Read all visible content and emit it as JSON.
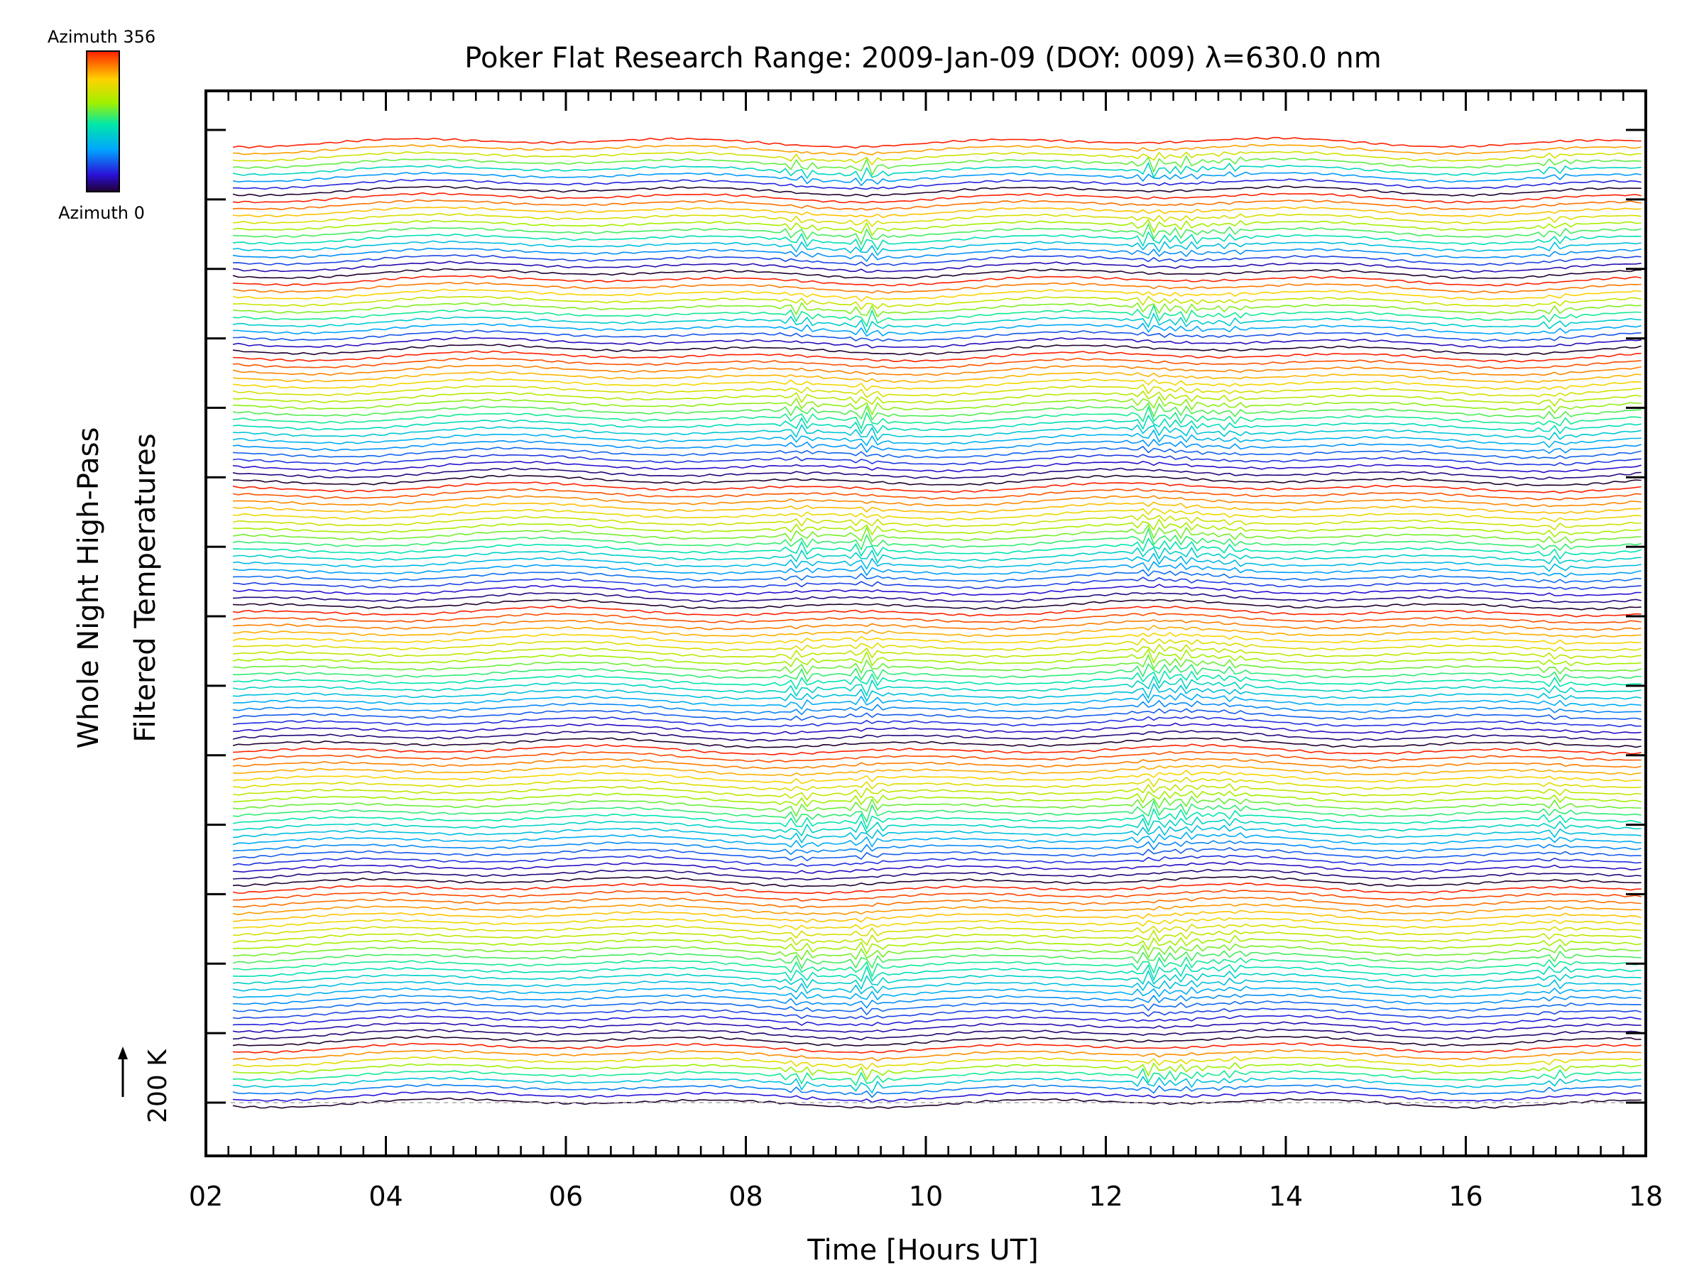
{
  "chart_data": {
    "type": "line",
    "title": "Poker Flat Research Range: 2009-Jan-09 (DOY: 009) λ=630.0 nm",
    "xlabel": "Time [Hours UT]",
    "ylabel_line1": "Whole Night High-Pass",
    "ylabel_line2": "Filtered Temperatures",
    "xlim": [
      2,
      18
    ],
    "x_ticks": [
      "02",
      "04",
      "06",
      "08",
      "10",
      "12",
      "14",
      "16",
      "18"
    ],
    "x_range_data": [
      2.3,
      17.95
    ],
    "n_traces": 140,
    "y_scale_bar": "200 K",
    "colorbar": {
      "top_label": "Azimuth 356",
      "bottom_label": "Azimuth 0",
      "range": [
        0,
        356
      ],
      "colormap": "rainbow"
    },
    "features": [
      {
        "x": 8.6,
        "amplitude": 0.8
      },
      {
        "x": 9.35,
        "amplitude": 1.0
      },
      {
        "x": 12.5,
        "amplitude": 1.0
      },
      {
        "x": 12.9,
        "amplitude": 0.7
      },
      {
        "x": 13.4,
        "amplitude": 0.5
      },
      {
        "x": 17.0,
        "amplitude": 0.6
      }
    ]
  }
}
